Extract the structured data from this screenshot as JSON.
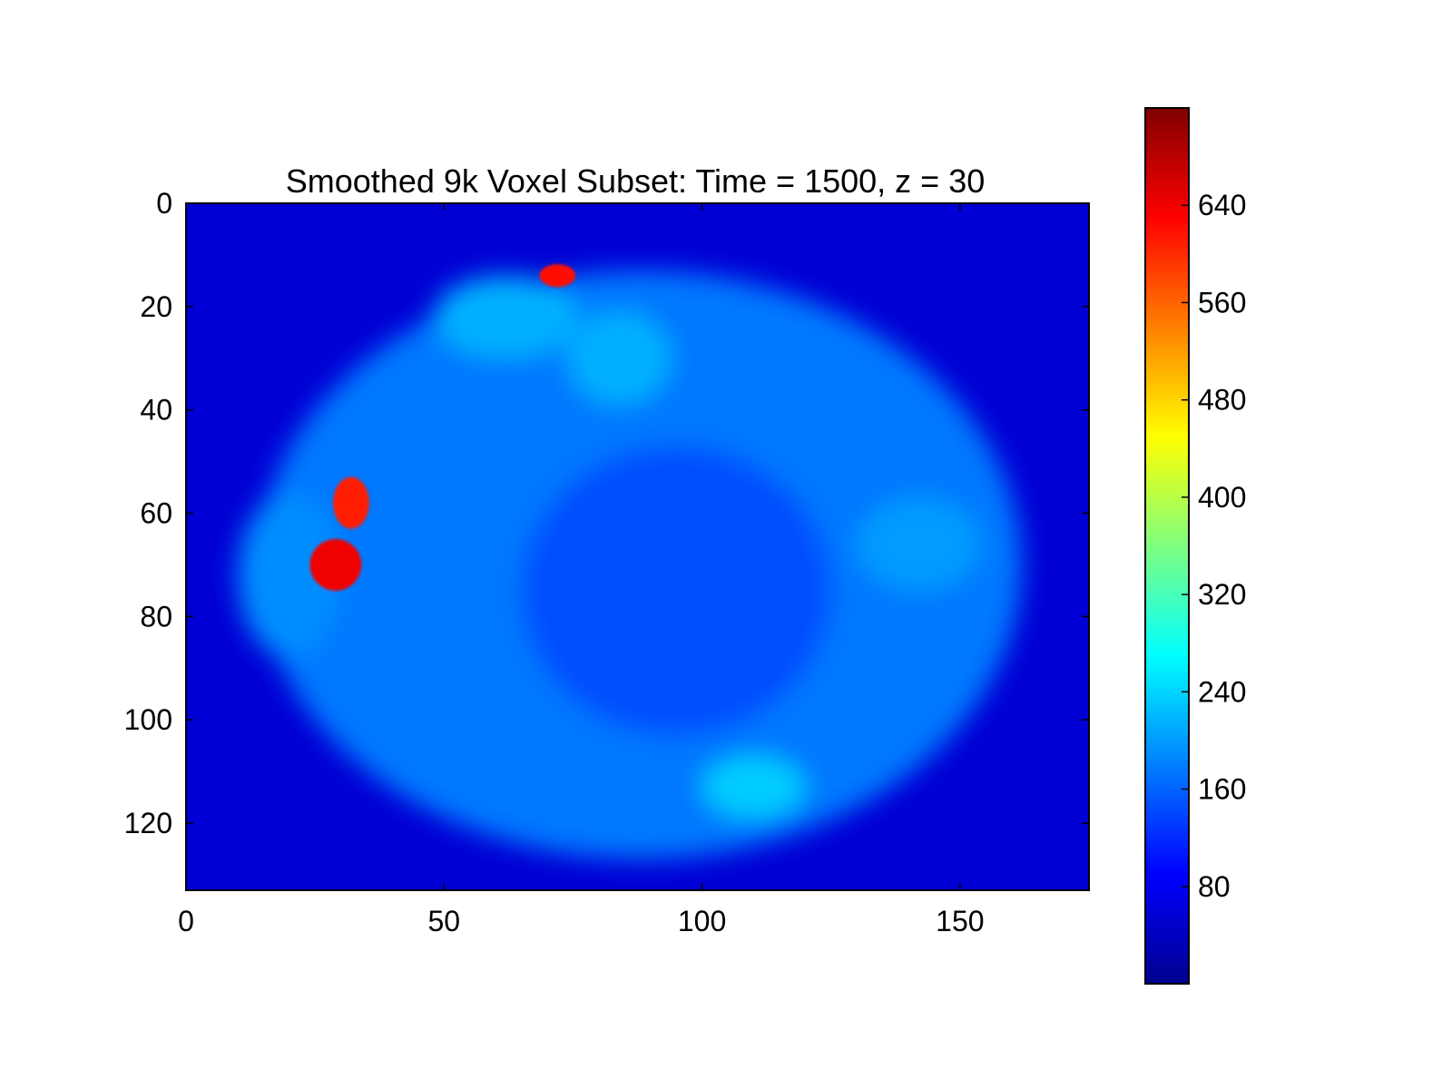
{
  "chart_data": {
    "type": "heatmap",
    "title": "Smoothed 9k Voxel Subset: Time = 1500, z = 30",
    "xlabel": "",
    "ylabel": "",
    "xlim": [
      0,
      175
    ],
    "ylim": [
      0,
      133
    ],
    "y_inverted": true,
    "xticks": [
      0,
      50,
      100,
      150
    ],
    "yticks": [
      0,
      20,
      40,
      60,
      80,
      100,
      120
    ],
    "colormap": "jet",
    "colorbar": {
      "range": [
        0,
        720
      ],
      "ticks": [
        80,
        160,
        240,
        320,
        400,
        480,
        560,
        640
      ]
    },
    "background_value": 60,
    "grid": false,
    "regions": [
      {
        "name": "brain",
        "shape": "ellipse",
        "cx": 88,
        "cy": 70,
        "rx": 74,
        "ry": 57,
        "value": 175
      },
      {
        "name": "left-lobe",
        "shape": "ellipse",
        "cx": 20,
        "cy": 72,
        "rx": 10,
        "ry": 16,
        "value": 190
      },
      {
        "name": "frontal-bright",
        "shape": "ellipse",
        "cx": 62,
        "cy": 22,
        "rx": 14,
        "ry": 8,
        "value": 215
      },
      {
        "name": "frontal-bright-2",
        "shape": "ellipse",
        "cx": 84,
        "cy": 30,
        "rx": 10,
        "ry": 9,
        "value": 215
      },
      {
        "name": "posterior-bright",
        "shape": "ellipse",
        "cx": 110,
        "cy": 113,
        "rx": 10,
        "ry": 6,
        "value": 235
      },
      {
        "name": "right-bright",
        "shape": "ellipse",
        "cx": 142,
        "cy": 66,
        "rx": 12,
        "ry": 9,
        "value": 200
      },
      {
        "name": "central-dark",
        "shape": "ellipse",
        "cx": 95,
        "cy": 75,
        "rx": 30,
        "ry": 28,
        "value": 145
      },
      {
        "name": "hot-spot-top",
        "shape": "ellipse",
        "cx": 72,
        "cy": 14,
        "rx": 3.5,
        "ry": 2.2,
        "value": 620
      },
      {
        "name": "hot-spot-left-upper",
        "shape": "ellipse",
        "cx": 32,
        "cy": 58,
        "rx": 3.5,
        "ry": 5,
        "value": 610
      },
      {
        "name": "hot-spot-left-lower",
        "shape": "ellipse",
        "cx": 29,
        "cy": 70,
        "rx": 5,
        "ry": 5,
        "value": 640
      }
    ]
  }
}
